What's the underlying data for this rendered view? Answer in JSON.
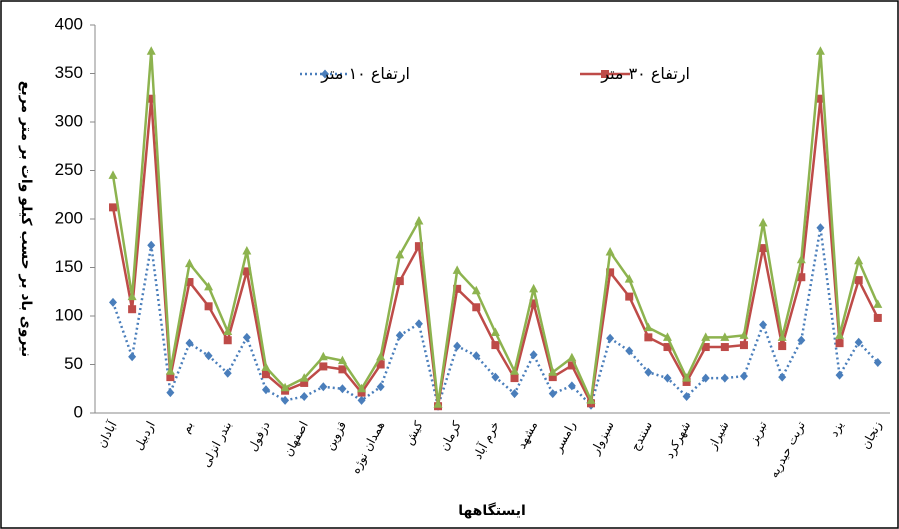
{
  "chart_data": {
    "type": "line",
    "y_label": "نیروی باد بر حسب کیلو وات بر متر مربع",
    "x_label": "ایستگاهها",
    "categories": [
      "آبادان",
      null,
      "اردبیل",
      null,
      "بم",
      null,
      "بندر انزلی",
      null,
      "دزفول",
      null,
      "اصفهان",
      null,
      "قزوین",
      null,
      "همدان نوژه",
      null,
      "کیش",
      null,
      "کرمان",
      null,
      "خرم آباد",
      null,
      "مشهد",
      null,
      "رامسر",
      null,
      "سبزوار",
      null,
      "سنندج",
      null,
      "شهرکرد",
      null,
      "شیراز",
      null,
      "تبریز",
      null,
      "تربت حیدریه",
      null,
      "یزد",
      null,
      "زنجان"
    ],
    "series": [
      {
        "name": "ارتفاع ١٠ متر",
        "color": "#4a7ebb",
        "marker": "diamond",
        "line_style": "dotted",
        "values": [
          114,
          58,
          173,
          21,
          72,
          59,
          41,
          78,
          24,
          13,
          17,
          27,
          25,
          13,
          27,
          80,
          92,
          7,
          69,
          59,
          37,
          20,
          60,
          20,
          28,
          8,
          77,
          64,
          42,
          36,
          17,
          36,
          36,
          38,
          91,
          37,
          75,
          191,
          39,
          73,
          52
        ]
      },
      {
        "name": "ارتفاع ٣٠ متر",
        "color": "#be4b48",
        "marker": "square",
        "line_style": "solid",
        "values": [
          212,
          107,
          324,
          37,
          135,
          110,
          75,
          146,
          40,
          23,
          31,
          48,
          45,
          21,
          50,
          136,
          172,
          7,
          128,
          109,
          70,
          36,
          113,
          37,
          49,
          10,
          145,
          120,
          78,
          68,
          32,
          68,
          68,
          70,
          170,
          69,
          140,
          324,
          72,
          137,
          98
        ]
      },
      {
        "color": "#8db34f",
        "marker": "triangle",
        "line_style": "solid",
        "values": [
          245,
          120,
          373,
          43,
          154,
          130,
          84,
          167,
          47,
          26,
          36,
          58,
          54,
          25,
          58,
          163,
          198,
          9,
          147,
          126,
          83,
          43,
          128,
          42,
          57,
          13,
          166,
          138,
          88,
          78,
          36,
          78,
          78,
          80,
          196,
          78,
          158,
          373,
          80,
          157,
          112
        ]
      }
    ],
    "ylim": [
      0,
      400
    ],
    "yticks": [
      0,
      50,
      100,
      150,
      200,
      250,
      300,
      350,
      400
    ],
    "grid": false
  }
}
